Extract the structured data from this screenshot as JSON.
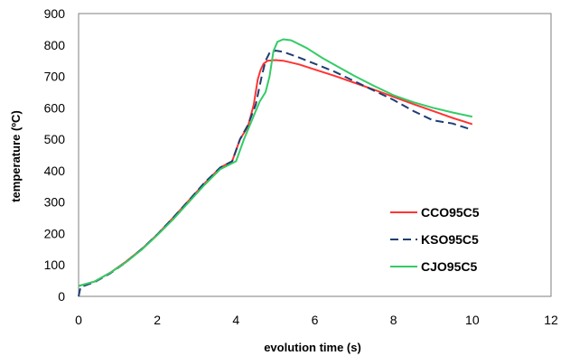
{
  "chart_data": {
    "type": "line",
    "title": "",
    "xlabel": "evolution time (s)",
    "ylabel": "temperature (ºC)",
    "xlim": [
      0,
      12
    ],
    "ylim": [
      0,
      900
    ],
    "xticks": [
      0,
      2,
      4,
      6,
      8,
      10,
      12
    ],
    "yticks": [
      0,
      100,
      200,
      300,
      400,
      500,
      600,
      700,
      800,
      900
    ],
    "grid": false,
    "legend_position": "bottom-right",
    "series": [
      {
        "name": "CCO95C5",
        "color": "#ff3333",
        "dash": "solid",
        "x": [
          0,
          0.4,
          0.8,
          1.2,
          1.6,
          2.0,
          2.4,
          2.8,
          3.2,
          3.6,
          3.9,
          4.1,
          4.3,
          4.45,
          4.55,
          4.62,
          4.7,
          4.8,
          5.0,
          5.2,
          5.6,
          6.0,
          6.5,
          7.0,
          7.5,
          8.0,
          8.5,
          9.0,
          9.5,
          10.0
        ],
        "y": [
          33,
          47,
          75,
          110,
          150,
          197,
          250,
          305,
          360,
          410,
          430,
          500,
          540,
          610,
          690,
          720,
          740,
          750,
          752,
          750,
          738,
          722,
          702,
          680,
          658,
          635,
          612,
          590,
          568,
          548
        ]
      },
      {
        "name": "KSO95C5",
        "color": "#1f3e73",
        "dash": "dashed",
        "x": [
          0,
          0.05,
          0.4,
          0.8,
          1.2,
          1.6,
          2.0,
          2.4,
          2.8,
          3.2,
          3.6,
          3.9,
          4.1,
          4.3,
          4.5,
          4.65,
          4.75,
          4.85,
          5.0,
          5.2,
          5.6,
          6.0,
          6.5,
          7.0,
          7.5,
          8.0,
          8.5,
          9.0,
          9.5,
          10.0
        ],
        "y": [
          0,
          30,
          45,
          73,
          108,
          150,
          197,
          250,
          305,
          362,
          410,
          430,
          500,
          545,
          610,
          700,
          750,
          775,
          782,
          778,
          760,
          740,
          715,
          685,
          655,
          625,
          590,
          560,
          550,
          530
        ]
      },
      {
        "name": "CJO95C5",
        "color": "#33cc66",
        "dash": "solid",
        "x": [
          0,
          0.4,
          0.8,
          1.2,
          1.6,
          2.0,
          2.4,
          2.8,
          3.2,
          3.6,
          4.0,
          4.2,
          4.4,
          4.6,
          4.75,
          4.85,
          4.95,
          5.05,
          5.2,
          5.4,
          5.8,
          6.2,
          6.6,
          7.0,
          7.5,
          8.0,
          8.5,
          9.0,
          9.5,
          10.0
        ],
        "y": [
          33,
          47,
          75,
          108,
          148,
          195,
          245,
          300,
          355,
          405,
          430,
          500,
          560,
          620,
          650,
          700,
          780,
          810,
          818,
          815,
          790,
          758,
          730,
          702,
          670,
          640,
          618,
          600,
          585,
          572
        ]
      }
    ]
  }
}
